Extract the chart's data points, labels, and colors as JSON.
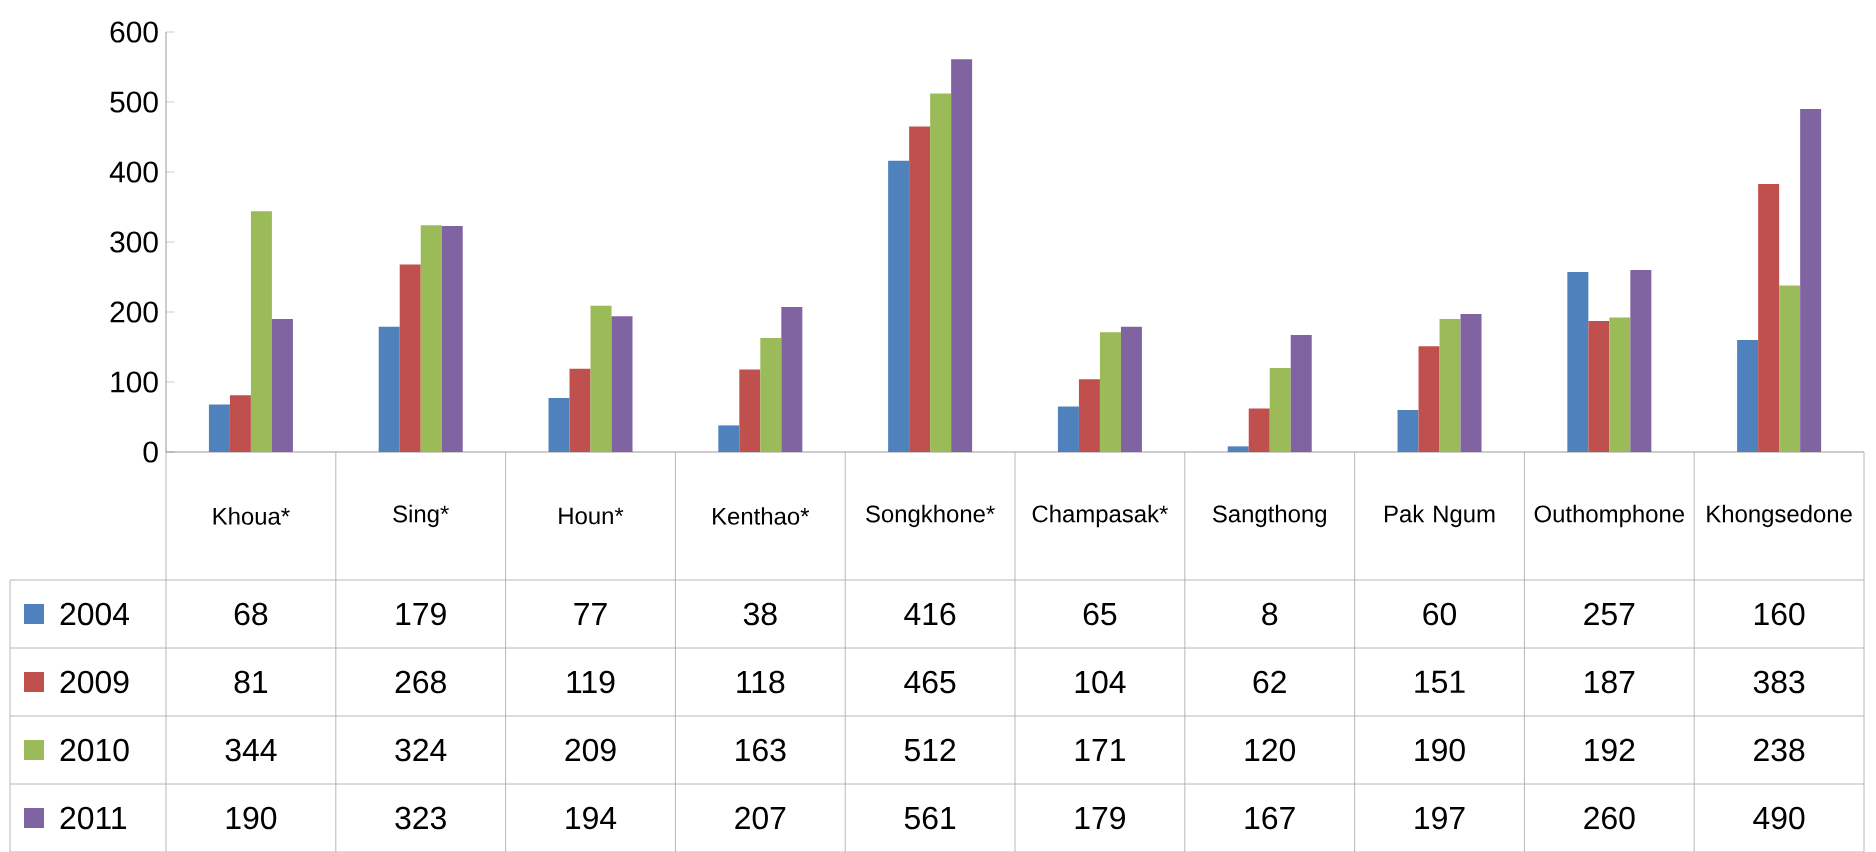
{
  "chart_data": {
    "type": "bar",
    "categories": [
      "Khoua*",
      "Sing*",
      "Houn*",
      "Kenthao*",
      "Songkhone*",
      "Champasak*",
      "Sangthong",
      "Pak Ngum",
      "Outhomphone",
      "Khongsedone"
    ],
    "series": [
      {
        "name": "2004",
        "color": "#4f81bd",
        "values": [
          68,
          179,
          77,
          38,
          416,
          65,
          8,
          60,
          257,
          160
        ]
      },
      {
        "name": "2009",
        "color": "#c0504d",
        "values": [
          81,
          268,
          119,
          118,
          465,
          104,
          62,
          151,
          187,
          383
        ]
      },
      {
        "name": "2010",
        "color": "#9bbb59",
        "values": [
          344,
          324,
          209,
          163,
          512,
          171,
          120,
          190,
          192,
          238
        ]
      },
      {
        "name": "2011",
        "color": "#8064a2",
        "values": [
          190,
          323,
          194,
          207,
          561,
          179,
          167,
          197,
          260,
          490
        ]
      }
    ],
    "ylim": [
      0,
      600
    ],
    "yticks": [
      0,
      100,
      200,
      300,
      400,
      500,
      600
    ],
    "data_labels": true,
    "legend": "left",
    "grid": false
  }
}
